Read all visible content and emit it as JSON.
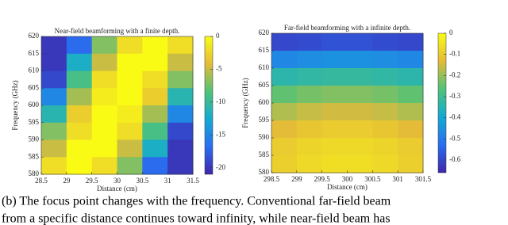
{
  "chart_data": [
    {
      "type": "heatmap",
      "title": "Near-field beamforming with a finite depth.",
      "x_label": "Distance (cm)",
      "y_label": "Frequency (GHz)",
      "x": [
        28.75,
        29.25,
        29.75,
        30.25,
        30.75,
        31.25
      ],
      "y": [
        617.5,
        612.5,
        607.5,
        602.5,
        597.5,
        592.5,
        587.5,
        582.5
      ],
      "z": [
        [
          -20,
          -17,
          -7,
          -2,
          0,
          -2
        ],
        [
          -20,
          -12,
          -5,
          0,
          0,
          -5
        ],
        [
          -19,
          -9,
          -2,
          0,
          -2,
          -7
        ],
        [
          -15,
          -6,
          -1,
          0,
          -3,
          -11
        ],
        [
          -11,
          -3,
          0,
          -1,
          -6,
          -15
        ],
        [
          -7,
          -2,
          0,
          -2,
          -9,
          -19
        ],
        [
          -5,
          0,
          0,
          -5,
          -12,
          -20
        ],
        [
          -2,
          0,
          -2,
          -7,
          -17,
          -20
        ]
      ],
      "xlim": [
        28.5,
        31.5
      ],
      "xticks": [
        28.5,
        29,
        29.5,
        30,
        30.5,
        31,
        31.5
      ],
      "ylim": [
        580,
        620
      ],
      "yticks": [
        580,
        585,
        590,
        595,
        600,
        605,
        610,
        615,
        620
      ],
      "zlim": [
        -21,
        0
      ],
      "zticks": [
        0,
        -5,
        -10,
        -15,
        -20
      ]
    },
    {
      "type": "heatmap",
      "title": "Far-field beamforming with a infinite depth.",
      "x_label": "Distance (cm)",
      "y_label": "Frequency (GHz)",
      "x": [
        298.75,
        299.25,
        299.75,
        300.25,
        300.75,
        301.25
      ],
      "y": [
        617.5,
        612.5,
        607.5,
        602.5,
        597.5,
        592.5,
        587.5,
        582.5
      ],
      "z": [
        [
          -0.6,
          -0.59,
          -0.58,
          -0.58,
          -0.59,
          -0.6
        ],
        [
          -0.47,
          -0.46,
          -0.45,
          -0.45,
          -0.46,
          -0.47
        ],
        [
          -0.34,
          -0.33,
          -0.32,
          -0.32,
          -0.33,
          -0.34
        ],
        [
          -0.25,
          -0.23,
          -0.22,
          -0.22,
          -0.23,
          -0.25
        ],
        [
          -0.18,
          -0.16,
          -0.15,
          -0.15,
          -0.16,
          -0.18
        ],
        [
          -0.13,
          -0.11,
          -0.1,
          -0.1,
          -0.11,
          -0.13
        ],
        [
          -0.1,
          -0.08,
          -0.07,
          -0.07,
          -0.08,
          -0.1
        ],
        [
          -0.09,
          -0.07,
          -0.06,
          -0.06,
          -0.07,
          -0.09
        ]
      ],
      "xlim": [
        298.5,
        301.5
      ],
      "xticks": [
        {
          "value": 298.5,
          "label": "298.5"
        },
        299,
        {
          "value": 299.5,
          "label": "299.5"
        },
        300,
        {
          "value": 300.5,
          "label": "300.5"
        },
        301,
        {
          "value": 301.5,
          "label": "301.5"
        }
      ],
      "ylim": [
        580,
        620
      ],
      "yticks": [
        580,
        585,
        590,
        595,
        600,
        605,
        610,
        615,
        620
      ],
      "zlim": [
        -0.66,
        0
      ],
      "zticks": [
        0,
        -0.1,
        -0.2,
        -0.3,
        -0.4,
        -0.5,
        -0.6
      ]
    }
  ],
  "caption": [
    "(b) The focus point changes with the frequency. Conventional far-field beam",
    "from a specific distance continues toward infinity, while near-field beam has"
  ]
}
